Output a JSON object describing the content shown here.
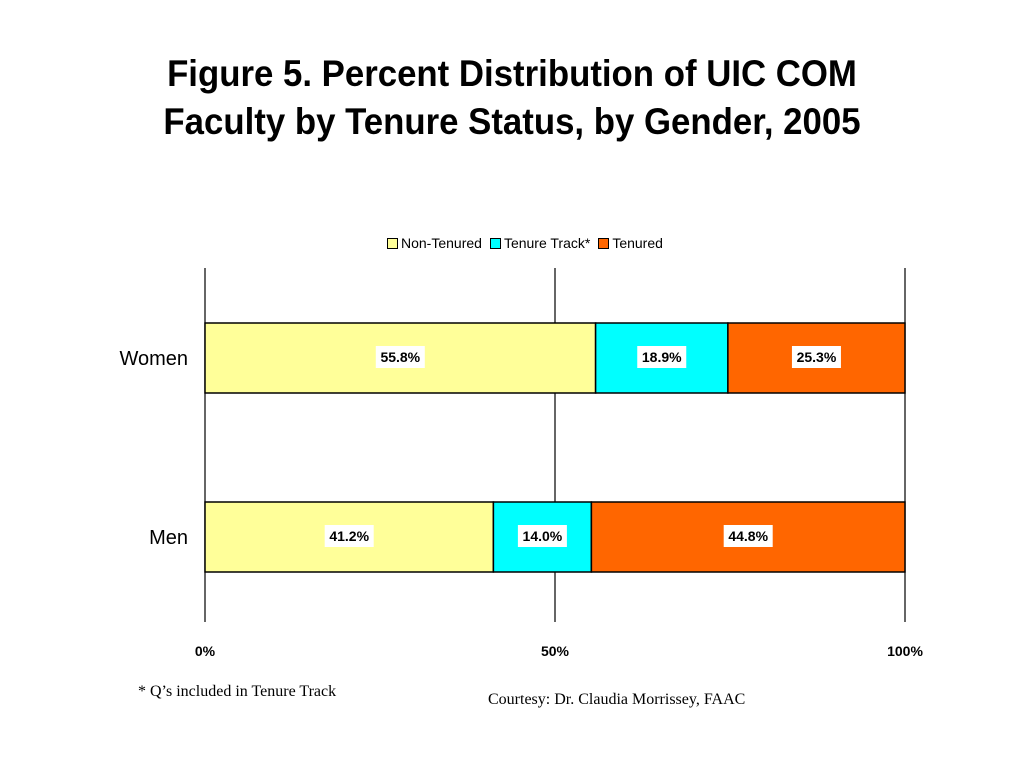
{
  "slide": {
    "title_line1": "Figure 5.  Percent Distribution of UIC COM",
    "title_line2": "Faculty by Tenure Status, by Gender, 2005",
    "footnote": "* Q’s included in Tenure Track",
    "courtesy": "Courtesy: Dr. Claudia Morrissey, FAAC"
  },
  "chart_data": {
    "type": "bar",
    "orientation": "horizontal",
    "stacked": "percent",
    "categories": [
      "Women",
      "Men"
    ],
    "series": [
      {
        "name": "Non-Tenured",
        "color": "#FFFF99",
        "values": [
          55.8,
          41.2
        ],
        "labels": [
          "55.8%",
          "41.2%"
        ]
      },
      {
        "name": "Tenure Track*",
        "color": "#00FFFF",
        "values": [
          18.9,
          14.0
        ],
        "labels": [
          "18.9%",
          "14.0%"
        ]
      },
      {
        "name": "Tenured",
        "color": "#FF6600",
        "values": [
          25.3,
          44.8
        ],
        "labels": [
          "25.3%",
          "44.8%"
        ]
      }
    ],
    "xlim": [
      0,
      100
    ],
    "xticks": [
      0,
      50,
      100
    ],
    "xtick_labels": [
      "0%",
      "50%",
      "100%"
    ],
    "grid": true,
    "legend_position": "top"
  }
}
